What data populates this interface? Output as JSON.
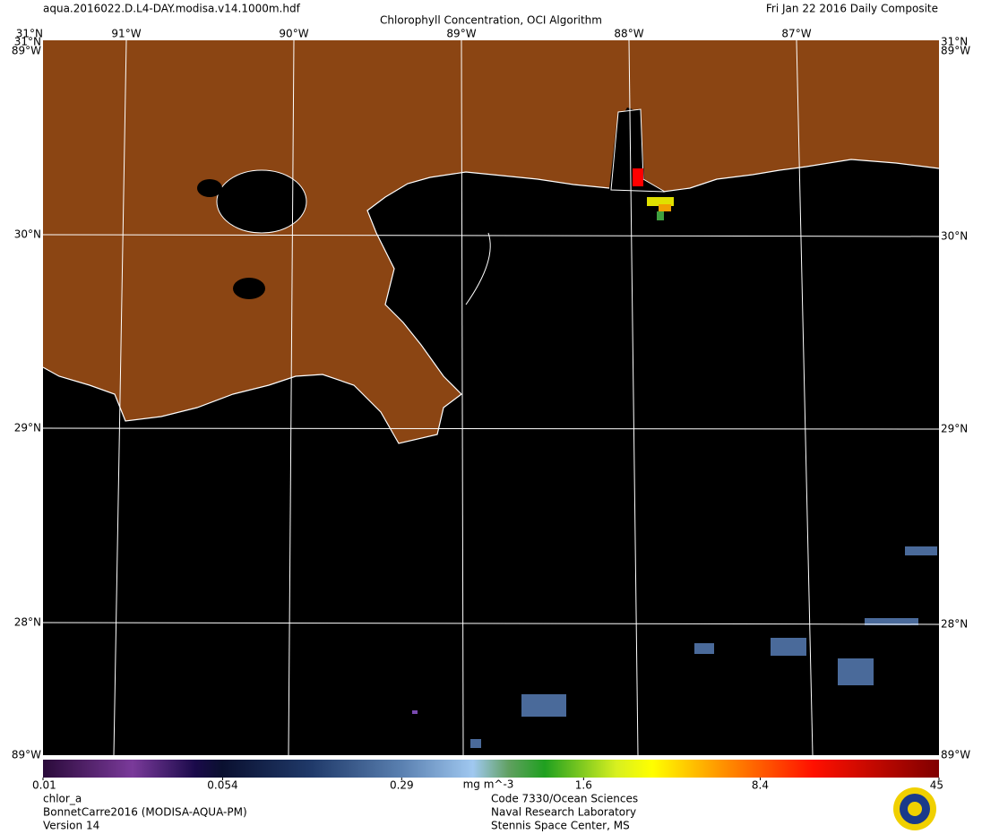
{
  "header": {
    "file": "aqua.2016022.D.L4-DAY.modisa.v14.1000m.hdf",
    "title": "Chlorophyll Concentration, OCI Algorithm",
    "date": "Fri Jan 22 2016 Daily Composite"
  },
  "map": {
    "longitude_labels": [
      "91°W",
      "90°W",
      "89°W",
      "88°W",
      "87°W"
    ],
    "latitude_labels": [
      "31°N",
      "30°N",
      "29°N",
      "28°N"
    ],
    "corner_label": "89°W"
  },
  "colorbar": {
    "ticks": [
      0.01,
      0.054,
      0.29,
      1.6,
      8.4,
      45
    ],
    "unit": "mg m^-3",
    "scale": "log"
  },
  "footer": {
    "left": [
      "chlor_a",
      "BonnetCarre2016 (MODISA-AQUA-PM)",
      "Version 14"
    ],
    "center": [
      "Code 7330/Ocean Sciences",
      "Naval Research Laboratory",
      "Stennis Space Center, MS"
    ]
  }
}
